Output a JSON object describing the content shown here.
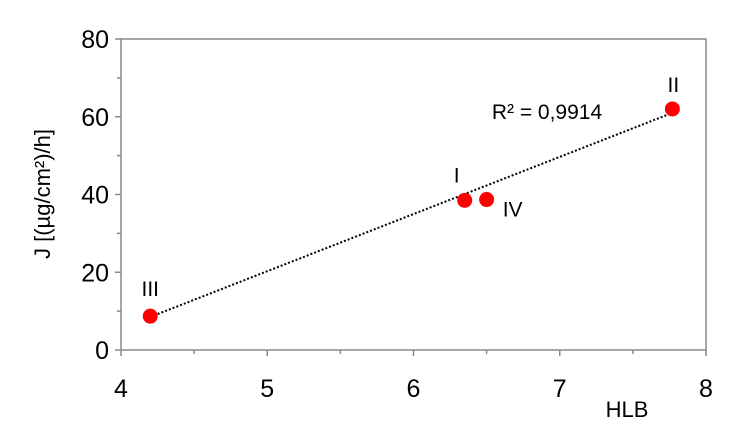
{
  "chart_data": {
    "type": "scatter",
    "title": "",
    "xlabel": "HLB",
    "ylabel": "J [(µg/cm²)/h]",
    "xlim": [
      4,
      8
    ],
    "ylim": [
      0,
      80
    ],
    "x_ticks": [
      4,
      5,
      6,
      7,
      8
    ],
    "x_tick_labels": [
      "4",
      "5",
      "6",
      "7",
      "8"
    ],
    "y_ticks": [
      0,
      20,
      40,
      60,
      80
    ],
    "y_tick_labels": [
      "0",
      "20",
      "40",
      "60",
      "80"
    ],
    "grid": false,
    "legend": "none",
    "marker_color": "#ff0000",
    "trendline": {
      "style": "dotted",
      "color": "#000000",
      "x": [
        4.2,
        7.77
      ],
      "y": [
        8.5,
        61.0
      ],
      "r2_label": "R² = 0,9914"
    },
    "points": [
      {
        "label": "I",
        "x": 6.35,
        "y": 38.5
      },
      {
        "label": "II",
        "x": 7.77,
        "y": 62.0
      },
      {
        "label": "III",
        "x": 4.2,
        "y": 8.7
      },
      {
        "label": "IV",
        "x": 6.5,
        "y": 38.7
      }
    ]
  }
}
